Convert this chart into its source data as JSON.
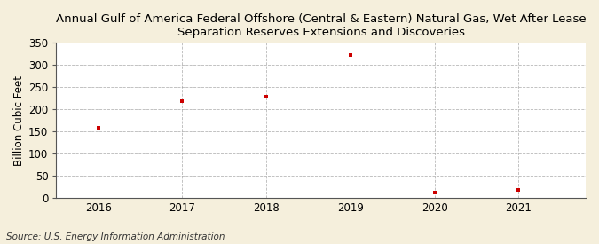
{
  "title": "Annual Gulf of America Federal Offshore (Central & Eastern) Natural Gas, Wet After Lease\nSeparation Reserves Extensions and Discoveries",
  "ylabel": "Billion Cubic Feet",
  "source": "Source: U.S. Energy Information Administration",
  "years": [
    2016,
    2017,
    2018,
    2019,
    2020,
    2021
  ],
  "values": [
    158,
    218,
    228,
    322,
    12,
    18
  ],
  "marker_color": "#cc0000",
  "figure_bg": "#f5efdc",
  "plot_bg": "#ffffff",
  "grid_color": "#999999",
  "ylim": [
    0,
    350
  ],
  "xlim": [
    2015.5,
    2021.8
  ],
  "yticks": [
    0,
    50,
    100,
    150,
    200,
    250,
    300,
    350
  ],
  "title_fontsize": 9.5,
  "label_fontsize": 8.5,
  "source_fontsize": 7.5,
  "tick_fontsize": 8.5
}
